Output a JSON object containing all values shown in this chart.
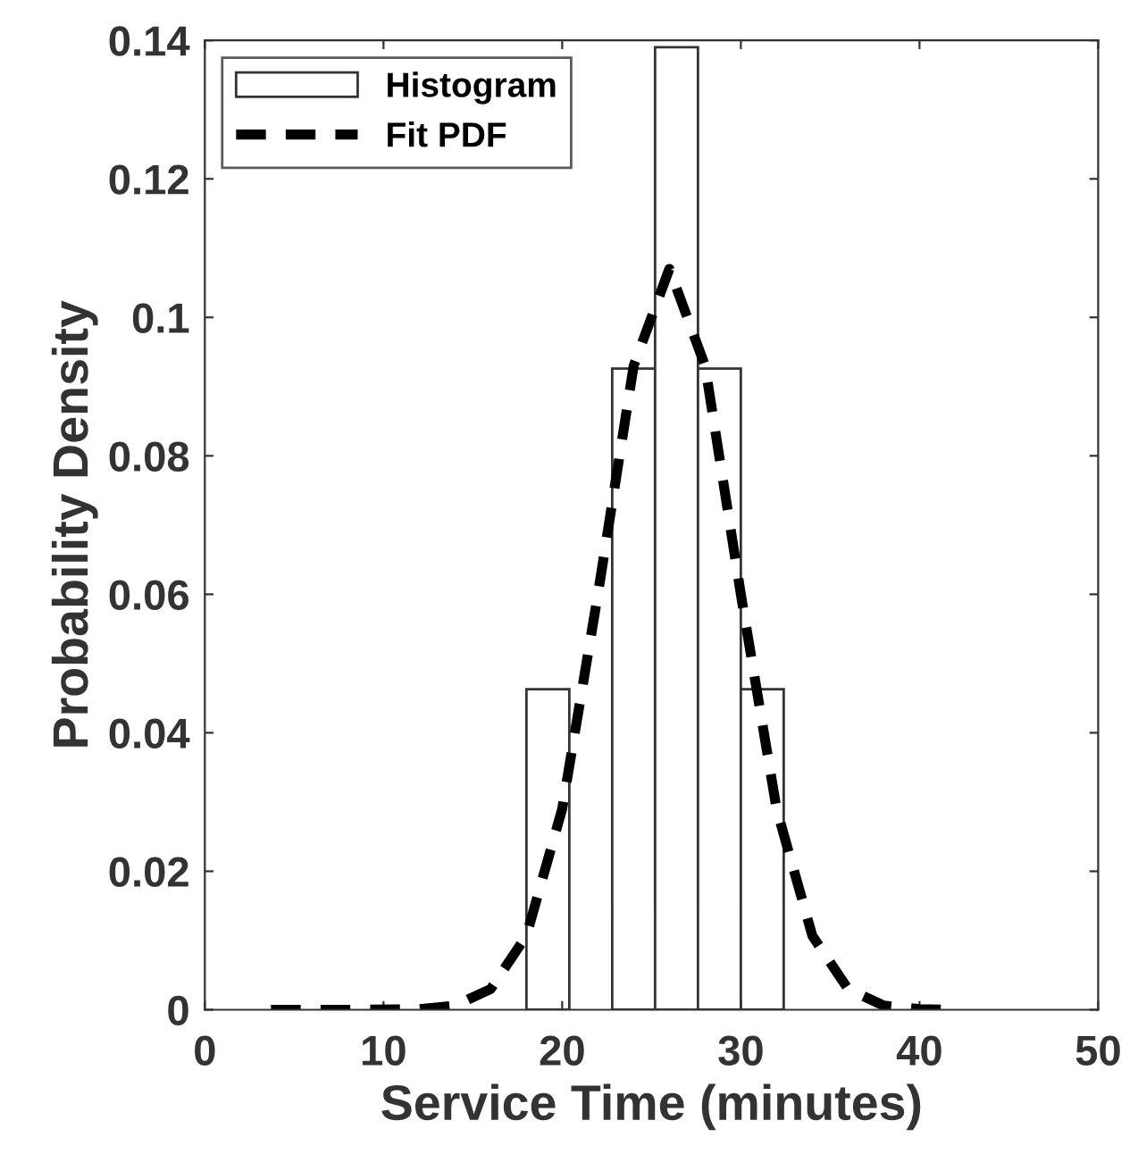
{
  "chart_data": {
    "type": "histogram",
    "xlabel": "Service Time (minutes)",
    "ylabel": "Probability Density",
    "series": [
      {
        "name": "Histogram",
        "color": "#ffffff",
        "bins": [
          18.0,
          20.4,
          22.8,
          25.2,
          27.6,
          30.0,
          32.4
        ],
        "values": [
          0.0463,
          null,
          0.0926,
          0.139,
          0.0926,
          0.0463
        ]
      },
      {
        "name": "Fit PDF",
        "type": "line",
        "color": "#000000",
        "line_style": "dashed",
        "x": [
          3.7,
          8,
          12,
          14,
          16,
          18,
          20,
          22,
          24,
          26,
          28,
          30,
          32,
          34,
          36,
          38,
          40,
          41.5
        ],
        "values": [
          0,
          0,
          0.0001,
          0.0006,
          0.003,
          0.0107,
          0.029,
          0.06,
          0.093,
          0.107,
          0.093,
          0.06,
          0.029,
          0.0107,
          0.003,
          0.0006,
          0.0001,
          0
        ]
      }
    ],
    "xlim": [
      0,
      50
    ],
    "xticks": [
      0,
      10,
      20,
      30,
      40,
      50
    ],
    "ylim": [
      0,
      0.14
    ],
    "yticks": [
      0,
      0.02,
      0.04,
      0.06,
      0.08,
      0.1,
      0.12,
      0.14
    ],
    "legend": "top left",
    "grid": false
  }
}
